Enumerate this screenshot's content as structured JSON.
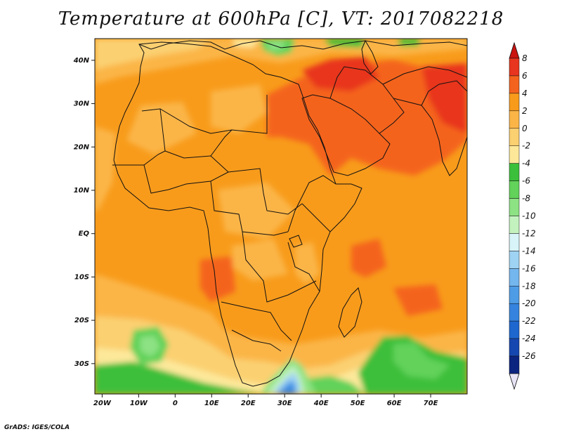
{
  "title": "Temperature at 600hPa [C], VT: 2017082218",
  "credit": "GrADS: IGES/COLA",
  "map": {
    "lon_range": [
      -22,
      80
    ],
    "lat_range": [
      -37,
      45
    ],
    "lat_ticks": [
      {
        "lat": 40,
        "label": "40N"
      },
      {
        "lat": 30,
        "label": "30N"
      },
      {
        "lat": 20,
        "label": "20N"
      },
      {
        "lat": 10,
        "label": "10N"
      },
      {
        "lat": 0,
        "label": "EQ"
      },
      {
        "lat": -10,
        "label": "10S"
      },
      {
        "lat": -20,
        "label": "20S"
      },
      {
        "lat": -30,
        "label": "30S"
      }
    ],
    "lon_ticks": [
      {
        "lon": -20,
        "label": "20W"
      },
      {
        "lon": -10,
        "label": "10W"
      },
      {
        "lon": 0,
        "label": "0"
      },
      {
        "lon": 10,
        "label": "10E"
      },
      {
        "lon": 20,
        "label": "20E"
      },
      {
        "lon": 30,
        "label": "30E"
      },
      {
        "lon": 40,
        "label": "40E"
      },
      {
        "lon": 50,
        "label": "50E"
      },
      {
        "lon": 60,
        "label": "60E"
      },
      {
        "lon": 70,
        "label": "70E"
      }
    ]
  },
  "colorbar": {
    "levels": [
      "8",
      "6",
      "4",
      "2",
      "0",
      "-2",
      "-4",
      "-6",
      "-8",
      "-10",
      "-12",
      "-14",
      "-16",
      "-18",
      "-20",
      "-22",
      "-24",
      "-26"
    ],
    "colors": [
      "#e8351f",
      "#f4631d",
      "#f89b1b",
      "#fbb547",
      "#fbd071",
      "#fde89a",
      "#3cbf3a",
      "#62d25a",
      "#8de283",
      "#c3f2be",
      "#d8f4f8",
      "#9fd3f3",
      "#74b6ee",
      "#4f9ce6",
      "#3583de",
      "#1e67cf",
      "#1647b1",
      "#0b2480"
    ],
    "top_arrow_color": "#c9140f",
    "bottom_arrow_color": "#e8e4f6"
  }
}
